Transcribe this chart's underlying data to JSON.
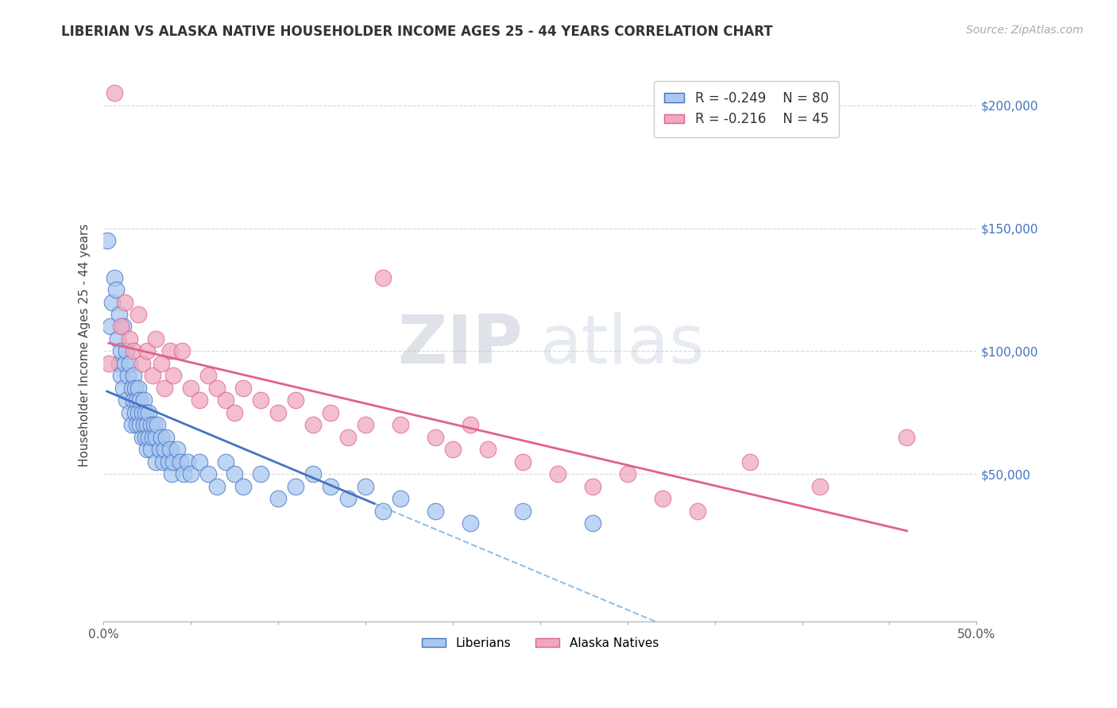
{
  "title": "LIBERIAN VS ALASKA NATIVE HOUSEHOLDER INCOME AGES 25 - 44 YEARS CORRELATION CHART",
  "source": "Source: ZipAtlas.com",
  "ylabel": "Householder Income Ages 25 - 44 years",
  "xlabel": "",
  "xlim": [
    0.0,
    0.5
  ],
  "ylim": [
    -10000,
    215000
  ],
  "xticks": [
    0.0,
    0.05,
    0.1,
    0.15,
    0.2,
    0.25,
    0.3,
    0.35,
    0.4,
    0.45,
    0.5
  ],
  "xticklabels": [
    "0.0%",
    "",
    "",
    "",
    "",
    "",
    "",
    "",
    "",
    "",
    "50.0%"
  ],
  "yticks": [
    0,
    50000,
    100000,
    150000,
    200000
  ],
  "yticklabels": [
    "",
    "$50,000",
    "$100,000",
    "$150,000",
    "$200,000"
  ],
  "legend_r1": "-0.249",
  "legend_n1": "80",
  "legend_r2": "-0.216",
  "legend_n2": "45",
  "color_liberian": "#a8c8f0",
  "color_alaska": "#f0a8c0",
  "color_line_liberian": "#4472c4",
  "color_line_alaska": "#e06090",
  "color_trend_dashed": "#90c0e8",
  "watermark_zip": "ZIP",
  "watermark_atlas": "atlas",
  "background_color": "#ffffff",
  "grid_color": "#d8d8d8",
  "liberian_x": [
    0.002,
    0.004,
    0.005,
    0.006,
    0.007,
    0.008,
    0.009,
    0.009,
    0.01,
    0.01,
    0.011,
    0.011,
    0.012,
    0.013,
    0.013,
    0.014,
    0.015,
    0.015,
    0.016,
    0.016,
    0.017,
    0.017,
    0.018,
    0.018,
    0.019,
    0.019,
    0.02,
    0.02,
    0.021,
    0.021,
    0.022,
    0.022,
    0.023,
    0.023,
    0.024,
    0.024,
    0.025,
    0.025,
    0.026,
    0.026,
    0.027,
    0.027,
    0.028,
    0.029,
    0.03,
    0.03,
    0.031,
    0.032,
    0.033,
    0.034,
    0.035,
    0.036,
    0.037,
    0.038,
    0.039,
    0.04,
    0.042,
    0.044,
    0.046,
    0.048,
    0.05,
    0.055,
    0.06,
    0.065,
    0.07,
    0.075,
    0.08,
    0.09,
    0.1,
    0.11,
    0.12,
    0.13,
    0.14,
    0.15,
    0.16,
    0.17,
    0.19,
    0.21,
    0.24,
    0.28
  ],
  "liberian_y": [
    145000,
    110000,
    120000,
    130000,
    125000,
    105000,
    115000,
    95000,
    100000,
    90000,
    110000,
    85000,
    95000,
    100000,
    80000,
    90000,
    95000,
    75000,
    85000,
    70000,
    90000,
    80000,
    75000,
    85000,
    70000,
    80000,
    75000,
    85000,
    70000,
    80000,
    75000,
    65000,
    80000,
    70000,
    75000,
    65000,
    70000,
    60000,
    75000,
    65000,
    70000,
    60000,
    65000,
    70000,
    65000,
    55000,
    70000,
    60000,
    65000,
    55000,
    60000,
    65000,
    55000,
    60000,
    50000,
    55000,
    60000,
    55000,
    50000,
    55000,
    50000,
    55000,
    50000,
    45000,
    55000,
    50000,
    45000,
    50000,
    40000,
    45000,
    50000,
    45000,
    40000,
    45000,
    35000,
    40000,
    35000,
    30000,
    35000,
    30000
  ],
  "alaska_x": [
    0.003,
    0.006,
    0.01,
    0.012,
    0.015,
    0.017,
    0.02,
    0.022,
    0.025,
    0.028,
    0.03,
    0.033,
    0.035,
    0.038,
    0.04,
    0.045,
    0.05,
    0.055,
    0.06,
    0.065,
    0.07,
    0.075,
    0.08,
    0.09,
    0.1,
    0.11,
    0.12,
    0.13,
    0.14,
    0.15,
    0.16,
    0.17,
    0.19,
    0.2,
    0.21,
    0.22,
    0.24,
    0.26,
    0.28,
    0.3,
    0.32,
    0.34,
    0.37,
    0.41,
    0.46
  ],
  "alaska_y": [
    95000,
    205000,
    110000,
    120000,
    105000,
    100000,
    115000,
    95000,
    100000,
    90000,
    105000,
    95000,
    85000,
    100000,
    90000,
    100000,
    85000,
    80000,
    90000,
    85000,
    80000,
    75000,
    85000,
    80000,
    75000,
    80000,
    70000,
    75000,
    65000,
    70000,
    130000,
    70000,
    65000,
    60000,
    70000,
    60000,
    55000,
    50000,
    45000,
    50000,
    40000,
    35000,
    55000,
    45000,
    65000
  ]
}
